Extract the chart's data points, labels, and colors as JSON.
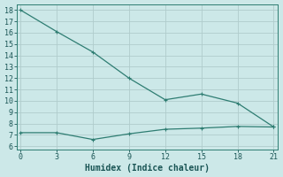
{
  "line1_x": [
    0,
    3,
    6,
    9,
    12,
    15,
    18,
    21
  ],
  "line1_y": [
    18.0,
    16.1,
    14.3,
    12.0,
    10.1,
    10.6,
    9.8,
    7.7
  ],
  "line2_x": [
    0,
    3,
    6,
    9,
    12,
    15,
    18,
    21
  ],
  "line2_y": [
    7.2,
    7.2,
    6.6,
    7.1,
    7.5,
    7.6,
    7.75,
    7.7
  ],
  "line_color": "#2e7d72",
  "bg_color": "#cce8e8",
  "grid_major_color": "#b0cccc",
  "grid_minor_color": "#c4dddd",
  "xlabel": "Humidex (Indice chaleur)",
  "xticks": [
    0,
    3,
    6,
    9,
    12,
    15,
    18,
    21
  ],
  "yticks": [
    6,
    7,
    8,
    9,
    10,
    11,
    12,
    13,
    14,
    15,
    16,
    17,
    18
  ],
  "xlim": [
    -0.3,
    21.3
  ],
  "ylim": [
    5.7,
    18.5
  ],
  "markersize": 2.0,
  "linewidth": 0.9,
  "font_family": "monospace",
  "tick_fontsize": 6.0,
  "xlabel_fontsize": 7.0
}
